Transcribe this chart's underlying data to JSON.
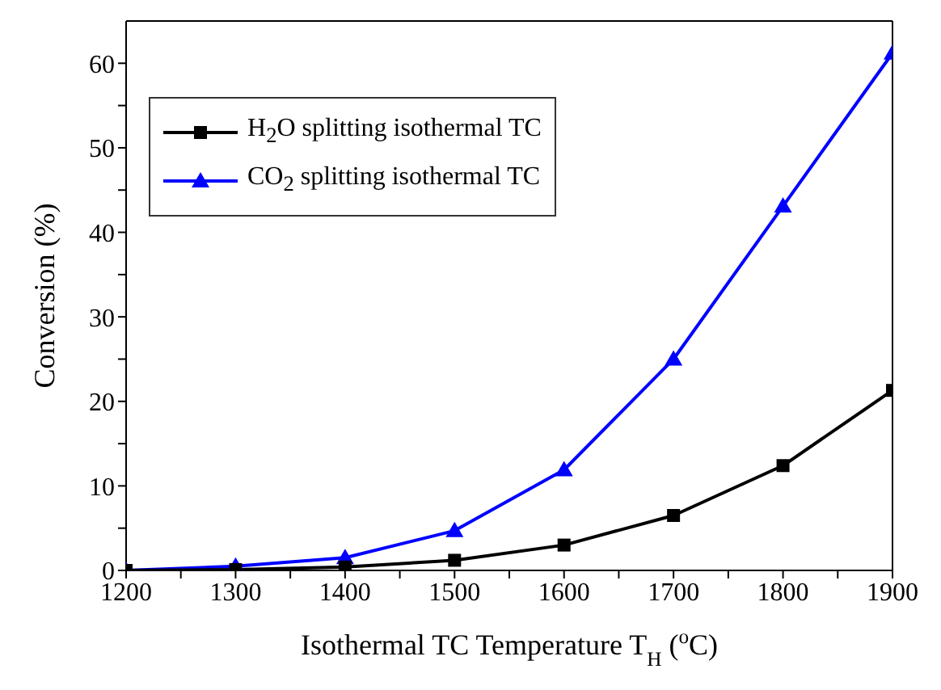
{
  "chart_data": {
    "type": "line",
    "xlabel": "Isothermal TC Temperature   T$_{H}$ ($^{o}$C)",
    "ylabel": "Conversion (%)",
    "x": [
      1200,
      1300,
      1400,
      1500,
      1600,
      1700,
      1800,
      1900
    ],
    "series": [
      {
        "name": "H$_{2}$O splitting isothermal TC",
        "color": "#000000",
        "marker": "square",
        "values": [
          0,
          0.1,
          0.4,
          1.2,
          3.0,
          6.5,
          12.4,
          21.3
        ]
      },
      {
        "name": "CO$_{2}$ splitting isothermal TC",
        "color": "#0000ff",
        "marker": "triangle",
        "values": [
          0,
          0.5,
          1.5,
          4.7,
          11.9,
          25.0,
          43.1,
          61.2
        ]
      }
    ],
    "xlim": [
      1200,
      1900
    ],
    "xticks": [
      1200,
      {
        "value": 1250,
        "label": null
      },
      1300,
      {
        "value": 1350,
        "label": null
      },
      1400,
      {
        "value": 1450,
        "label": null
      },
      1500,
      {
        "value": 1550,
        "label": null
      },
      1600,
      {
        "value": 1650,
        "label": null
      },
      1700,
      {
        "value": 1750,
        "label": null
      },
      1800,
      {
        "value": 1850,
        "label": null
      },
      1900
    ],
    "ylim": [
      0,
      65
    ],
    "yticks": [
      0,
      {
        "value": 5,
        "label": null
      },
      10,
      {
        "value": 15,
        "label": null
      },
      20,
      {
        "value": 25,
        "label": null
      },
      30,
      {
        "value": 35,
        "label": null
      },
      40,
      {
        "value": 45,
        "label": null
      },
      50,
      {
        "value": 55,
        "label": null
      },
      60
    ],
    "grid": false,
    "legend": "top left",
    "line_style": "solid"
  }
}
